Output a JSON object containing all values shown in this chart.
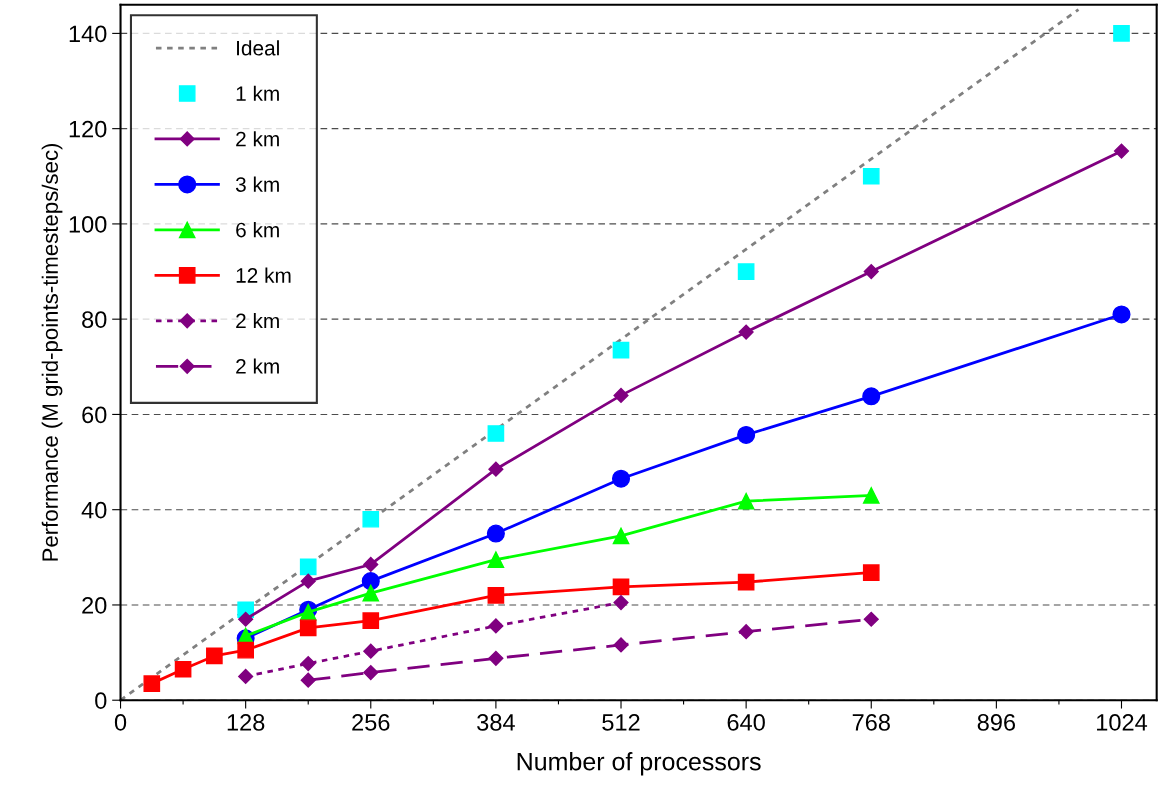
{
  "chart_data": {
    "type": "line",
    "xlabel": "Number of processors",
    "ylabel": "Performance (M grid-points-timesteps/sec)",
    "xlim": [
      0,
      1060
    ],
    "ylim": [
      0,
      146
    ],
    "xticks": [
      0,
      {
        "value": 64,
        "label": null
      },
      128,
      {
        "value": 192,
        "label": null
      },
      256,
      {
        "value": 320,
        "label": null
      },
      384,
      {
        "value": 448,
        "label": null
      },
      512,
      {
        "value": 576,
        "label": null
      },
      640,
      {
        "value": 704,
        "label": null
      },
      768,
      {
        "value": 832,
        "label": null
      },
      896,
      {
        "value": 960,
        "label": null
      },
      1024
    ],
    "yticks": [
      0,
      20,
      40,
      60,
      80,
      100,
      120,
      140
    ],
    "grid": "y",
    "legend": "top left",
    "series": [
      {
        "name": "Ideal",
        "color": "#808080",
        "line_style": "dotted",
        "marker": "none",
        "x": [
          0,
          980
        ],
        "values": [
          0,
          145
        ]
      },
      {
        "name": "1 km",
        "type": "scatter",
        "color": "#00ffff",
        "marker": "square",
        "x": [
          128,
          192,
          256,
          384,
          512,
          640,
          768,
          1024
        ],
        "values": [
          19,
          28,
          38,
          56,
          73.5,
          90,
          110,
          140
        ]
      },
      {
        "name": "2 km",
        "color": "#800080",
        "line_style": "solid",
        "marker": "diamond",
        "x": [
          128,
          192,
          256,
          384,
          512,
          640,
          768,
          1024
        ],
        "values": [
          17,
          25,
          28.5,
          48.5,
          64,
          77.3,
          90,
          115.3
        ]
      },
      {
        "name": "3 km",
        "color": "#0000ff",
        "line_style": "solid",
        "marker": "circle",
        "x": [
          128,
          192,
          256,
          384,
          512,
          640,
          768,
          1024
        ],
        "values": [
          13,
          19,
          25,
          35,
          46.5,
          55.7,
          63.8,
          81
        ]
      },
      {
        "name": "6 km",
        "color": "#00ff00",
        "line_style": "solid",
        "marker": "triangle",
        "x": [
          128,
          192,
          256,
          384,
          512,
          640,
          768
        ],
        "values": [
          13.5,
          18.5,
          22.5,
          29.5,
          34.5,
          41.8,
          43
        ]
      },
      {
        "name": "12 km",
        "color": "#ff0000",
        "line_style": "solid",
        "marker": "square",
        "x": [
          32,
          64,
          96,
          128,
          192,
          256,
          384,
          512,
          640,
          768
        ],
        "values": [
          3.5,
          6.5,
          9.3,
          10.5,
          15.2,
          16.7,
          22,
          23.8,
          24.8,
          26.8
        ]
      },
      {
        "name": "2 km",
        "color": "#800080",
        "line_style": "dotted",
        "marker": "diamond",
        "x": [
          128,
          192,
          256,
          384,
          512
        ],
        "values": [
          5,
          7.7,
          10.3,
          15.6,
          20.5
        ]
      },
      {
        "name": "2 km",
        "color": "#800080",
        "line_style": "dashed",
        "marker": "diamond",
        "x": [
          192,
          256,
          384,
          512,
          640,
          768
        ],
        "values": [
          4.2,
          5.8,
          8.8,
          11.6,
          14.4,
          17
        ]
      }
    ]
  }
}
